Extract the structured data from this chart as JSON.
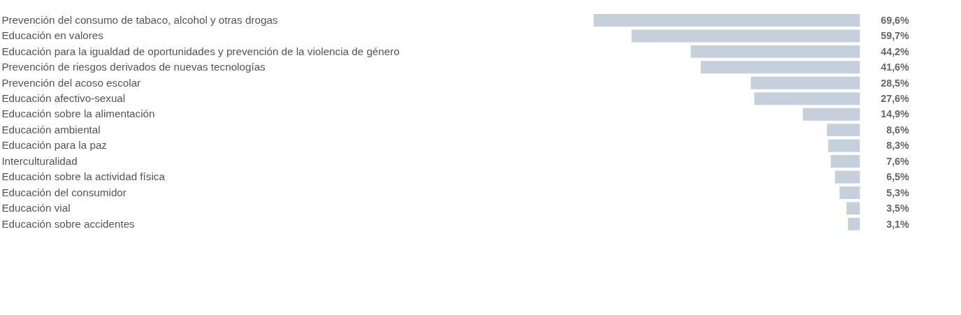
{
  "chart_data": {
    "type": "bar",
    "orientation": "horizontal",
    "color": "#c5d0dc",
    "categories": [
      "Prevención del consumo de tabaco, alcohol y otras drogas",
      "Educación en valores",
      "Educación para la igualdad de oportunidades y prevención de la violencia de género",
      "Prevención de riesgos derivados de nuevas tecnologías",
      "Prevención del acoso escolar",
      "Educación afectivo-sexual",
      "Educación sobre la alimentación",
      "Educación ambiental",
      "Educación para la paz",
      "Interculturalidad",
      "Educación sobre la actividad física",
      "Educación del consumidor",
      "Educación vial",
      "Educación sobre accidentes"
    ],
    "values": [
      69.6,
      59.7,
      44.2,
      41.6,
      28.5,
      27.6,
      14.9,
      8.6,
      8.3,
      7.6,
      6.5,
      5.3,
      3.5,
      3.1
    ],
    "value_labels": [
      "69,6%",
      "59,7%",
      "44,2%",
      "41,6%",
      "28,5%",
      "27,6%",
      "14,9%",
      "8,6%",
      "8,3%",
      "7,6%",
      "6,5%",
      "5,3%",
      "3,5%",
      "3,1%"
    ],
    "grid": false
  }
}
